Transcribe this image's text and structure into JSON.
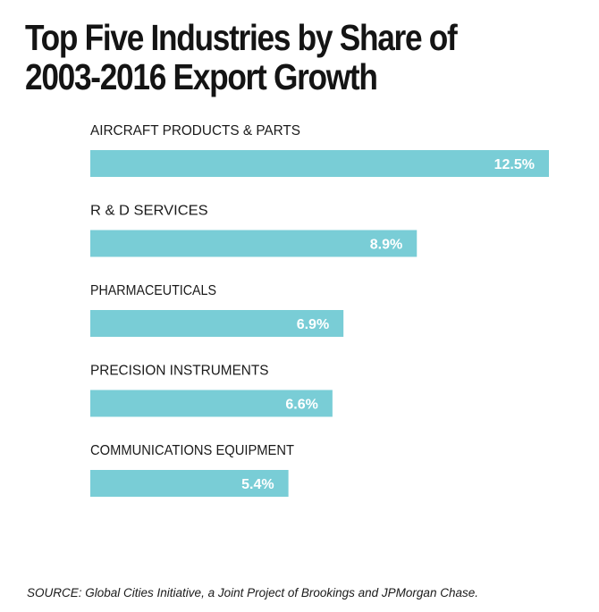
{
  "chart_data": {
    "type": "bar",
    "orientation": "horizontal",
    "title": "Top Five Industries by Share of 2003-2016 Export Growth",
    "title_lines": [
      "Top Five Industries by Share of",
      "2003-2016 Export Growth"
    ],
    "categories": [
      "AIRCRAFT PRODUCTS & PARTS",
      "R & D SERVICES",
      "PHARMACEUTICALS",
      "PRECISION INSTRUMENTS",
      "COMMUNICATIONS EQUIPMENT"
    ],
    "values": [
      12.5,
      8.9,
      6.9,
      6.6,
      5.4
    ],
    "value_labels": [
      "12.5%",
      "8.9%",
      "6.9%",
      "6.6%",
      "5.4%"
    ],
    "unit": "%",
    "xlim": [
      0,
      12.5
    ],
    "grid": false,
    "legend": "none",
    "bar_color": "#79cdd6",
    "value_label_color": "#ffffff"
  },
  "source": "SOURCE: Global Cities Initiative, a Joint Project of Brookings and JPMorgan Chase."
}
